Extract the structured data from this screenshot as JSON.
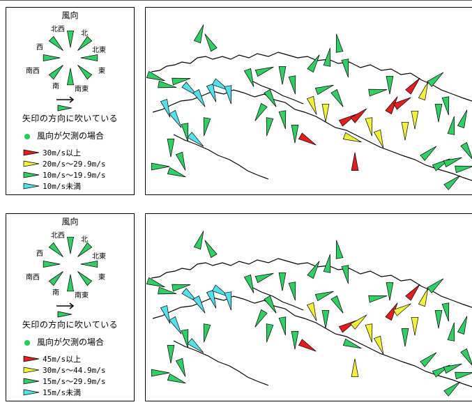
{
  "legend_title": "風向",
  "directions": {
    "n": "北",
    "nw": "北西",
    "ne": "北東",
    "w": "西",
    "e": "東",
    "sw": "南西",
    "s": "南",
    "se": "南東"
  },
  "arrow_note": "矢印の方向に吹いている",
  "missing_label": "風向が欠測の場合",
  "colors": {
    "red": "#e02020",
    "yellow": "#f0f040",
    "green": "#33cc66",
    "cyan": "#55e0e8",
    "outline": "#000000"
  },
  "panels": [
    {
      "categories": [
        {
          "color": "red",
          "label": "30m/s以上"
        },
        {
          "color": "yellow",
          "label": "20m/s〜29.9m/s"
        },
        {
          "color": "green",
          "label": "10m/s〜19.9m/s"
        },
        {
          "color": "cyan",
          "label": "10m/s未満"
        }
      ]
    },
    {
      "categories": [
        {
          "color": "red",
          "label": "45m/s以上"
        },
        {
          "color": "yellow",
          "label": "30m/s〜44.9m/s"
        },
        {
          "color": "green",
          "label": "15m/s〜29.9m/s"
        },
        {
          "color": "cyan",
          "label": "15m/s未満"
        }
      ]
    }
  ]
}
